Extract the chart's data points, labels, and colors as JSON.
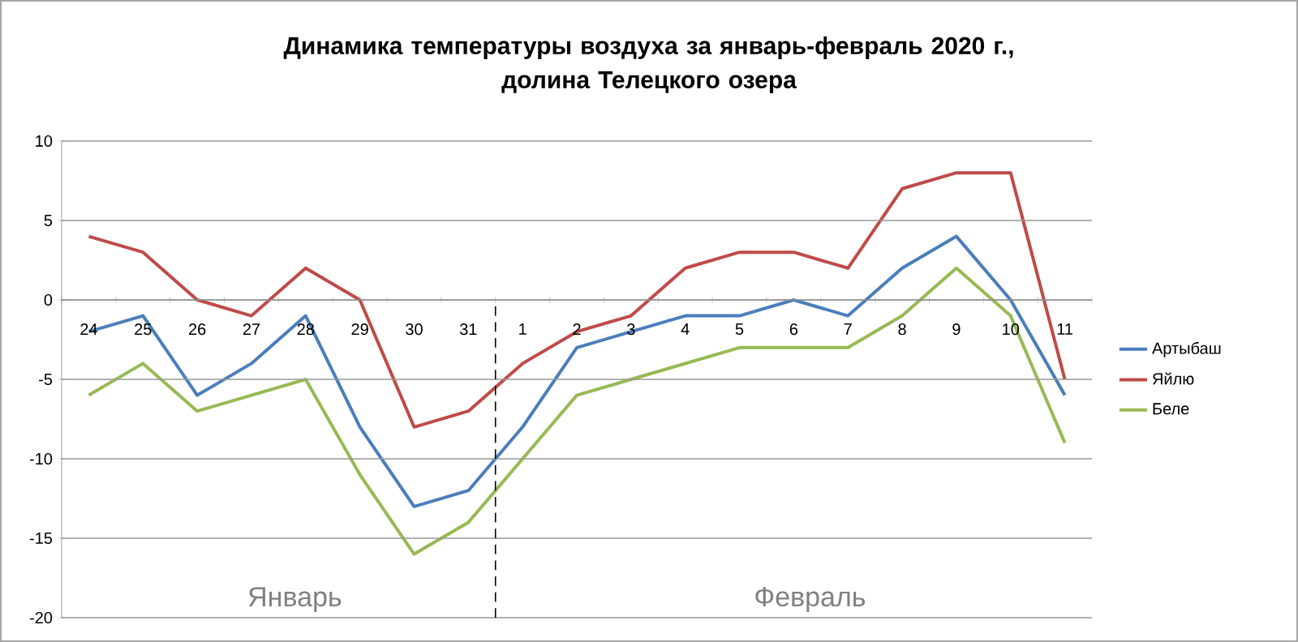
{
  "chart_data": {
    "type": "line",
    "title": "Динамика температуры воздуха за январь-февраль 2020 г.,\nдолина Телецкого озера",
    "categories": [
      "24",
      "25",
      "26",
      "27",
      "28",
      "29",
      "30",
      "31",
      "1",
      "2",
      "3",
      "4",
      "5",
      "6",
      "7",
      "8",
      "9",
      "10",
      "11"
    ],
    "series": [
      {
        "name": "Артыбаш",
        "color": "#4a7ebb",
        "values": [
          -2,
          -1,
          -6,
          -4,
          -1,
          -8,
          -13,
          -12,
          -8,
          -3,
          -2,
          -1,
          -1,
          0,
          -1,
          2,
          4,
          0,
          -6
        ]
      },
      {
        "name": "Яйлю",
        "color": "#be4b48",
        "values": [
          4,
          3,
          0,
          -1,
          2,
          0,
          -8,
          -7,
          -4,
          -2,
          -1,
          2,
          3,
          3,
          2,
          7,
          8,
          8,
          -5
        ]
      },
      {
        "name": "Беле",
        "color": "#98b954",
        "values": [
          -6,
          -4,
          -7,
          -6,
          -5,
          -11,
          -16,
          -14,
          -10,
          -6,
          -5,
          -4,
          -3,
          -3,
          -3,
          -1,
          2,
          -1,
          -9
        ]
      }
    ],
    "ylim": [
      -20,
      10
    ],
    "yticks": [
      -20,
      -15,
      -10,
      -5,
      0,
      5,
      10
    ],
    "grid": "y",
    "legend": "right",
    "marker": "none",
    "line_style": "solid",
    "annotations": [
      "Январь",
      "Февраль"
    ]
  }
}
